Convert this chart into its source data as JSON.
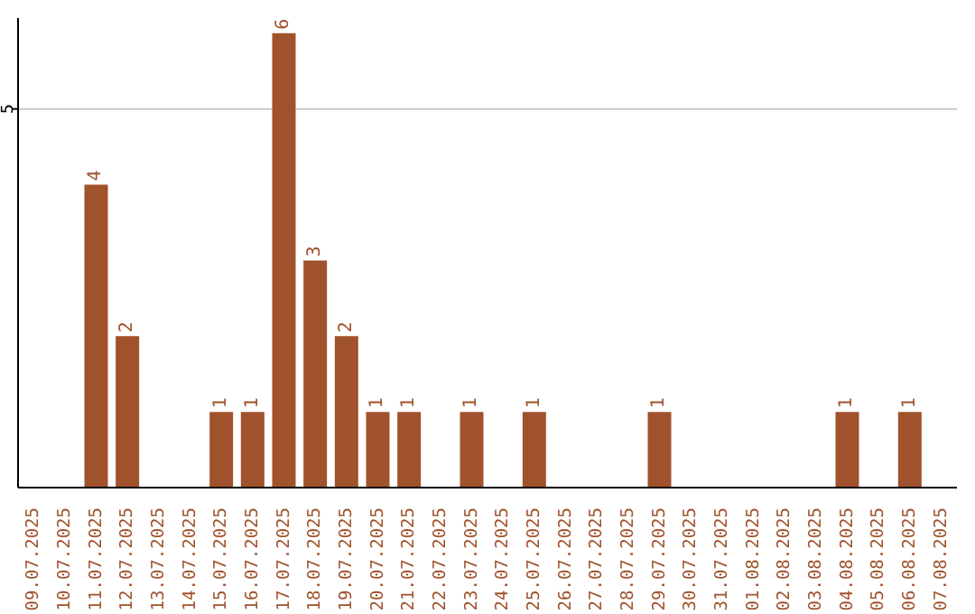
{
  "chart_data": {
    "type": "bar",
    "categories": [
      "09.07.2025",
      "10.07.2025",
      "11.07.2025",
      "12.07.2025",
      "13.07.2025",
      "14.07.2025",
      "15.07.2025",
      "16.07.2025",
      "17.07.2025",
      "18.07.2025",
      "19.07.2025",
      "20.07.2025",
      "21.07.2025",
      "22.07.2025",
      "23.07.2025",
      "24.07.2025",
      "25.07.2025",
      "26.07.2025",
      "27.07.2025",
      "28.07.2025",
      "29.07.2025",
      "30.07.2025",
      "31.07.2025",
      "01.08.2025",
      "02.08.2025",
      "03.08.2025",
      "04.08.2025",
      "05.08.2025",
      "06.08.2025",
      "07.08.2025"
    ],
    "values": [
      null,
      null,
      4,
      2,
      null,
      null,
      1,
      1,
      6,
      3,
      2,
      1,
      1,
      null,
      1,
      null,
      1,
      null,
      null,
      null,
      1,
      null,
      null,
      null,
      null,
      null,
      1,
      null,
      1,
      null
    ],
    "color": "#a0522d",
    "ylim": [
      0,
      6.2
    ],
    "yticks": [
      5
    ],
    "grid": "y",
    "data_labels": true
  }
}
